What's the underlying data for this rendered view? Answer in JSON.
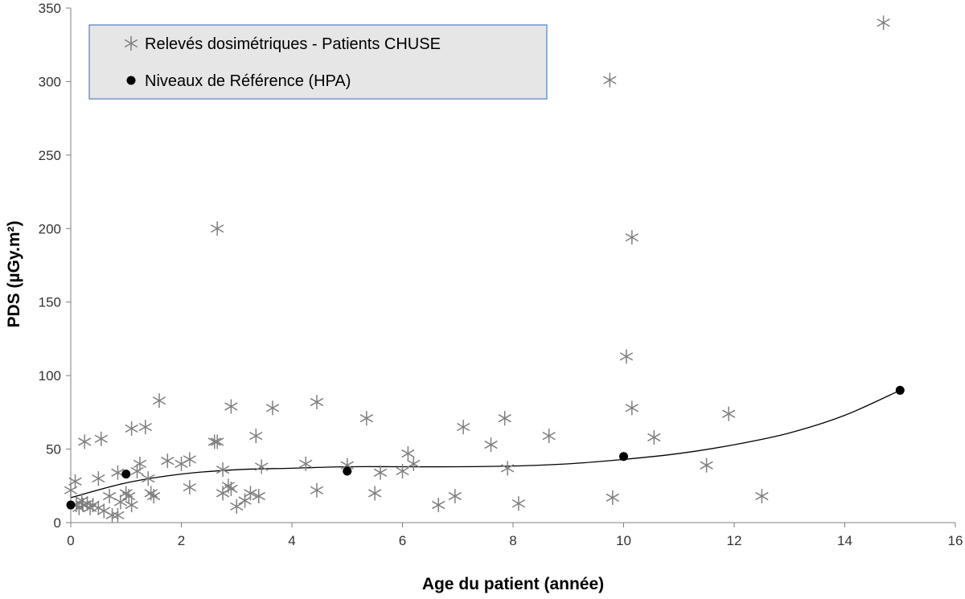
{
  "chart_data": {
    "type": "scatter",
    "xlabel": "Age du patient (année)",
    "ylabel": "PDS (µGy.m²)",
    "xlim": [
      0,
      16
    ],
    "ylim": [
      0,
      350
    ],
    "xticks": [
      "0",
      "2",
      "4",
      "6",
      "8",
      "10",
      "12",
      "14",
      "16"
    ],
    "yticks": [
      "0",
      "50",
      "100",
      "150",
      "200",
      "250",
      "300",
      "350"
    ],
    "grid": false,
    "legend_position": "top-left",
    "series": [
      {
        "name": "Relevés dosimétriques - Patients CHUSE",
        "marker": "asterisk",
        "color": "#7f7f7f",
        "points": [
          [
            0.0,
            22
          ],
          [
            0.08,
            28
          ],
          [
            0.1,
            12
          ],
          [
            0.15,
            10
          ],
          [
            0.2,
            15
          ],
          [
            0.22,
            12
          ],
          [
            0.25,
            55
          ],
          [
            0.3,
            13
          ],
          [
            0.35,
            10
          ],
          [
            0.4,
            12
          ],
          [
            0.5,
            30
          ],
          [
            0.5,
            10
          ],
          [
            0.55,
            57
          ],
          [
            0.6,
            8
          ],
          [
            0.7,
            18
          ],
          [
            0.75,
            5
          ],
          [
            0.85,
            34
          ],
          [
            0.85,
            5
          ],
          [
            0.9,
            14
          ],
          [
            1.0,
            20
          ],
          [
            1.05,
            18
          ],
          [
            1.1,
            64
          ],
          [
            1.1,
            12
          ],
          [
            1.2,
            35
          ],
          [
            1.25,
            40
          ],
          [
            1.35,
            65
          ],
          [
            1.4,
            30
          ],
          [
            1.45,
            20
          ],
          [
            1.5,
            18
          ],
          [
            1.6,
            83
          ],
          [
            1.75,
            42
          ],
          [
            2.0,
            40
          ],
          [
            2.15,
            24
          ],
          [
            2.15,
            43
          ],
          [
            2.6,
            55
          ],
          [
            2.65,
            55
          ],
          [
            2.65,
            200
          ],
          [
            2.75,
            36
          ],
          [
            2.75,
            20
          ],
          [
            2.85,
            25
          ],
          [
            2.9,
            23
          ],
          [
            2.9,
            79
          ],
          [
            3.0,
            11
          ],
          [
            3.15,
            15
          ],
          [
            3.25,
            20
          ],
          [
            3.35,
            59
          ],
          [
            3.4,
            18
          ],
          [
            3.45,
            38
          ],
          [
            3.65,
            78
          ],
          [
            4.25,
            40
          ],
          [
            4.45,
            22
          ],
          [
            4.45,
            82
          ],
          [
            5.0,
            39
          ],
          [
            5.35,
            71
          ],
          [
            5.5,
            20
          ],
          [
            5.6,
            34
          ],
          [
            6.0,
            35
          ],
          [
            6.1,
            47
          ],
          [
            6.2,
            40
          ],
          [
            6.65,
            12
          ],
          [
            6.95,
            18
          ],
          [
            7.1,
            65
          ],
          [
            7.6,
            53
          ],
          [
            7.85,
            71
          ],
          [
            7.9,
            37
          ],
          [
            8.1,
            13
          ],
          [
            8.65,
            59
          ],
          [
            9.75,
            301
          ],
          [
            9.8,
            17
          ],
          [
            10.05,
            113
          ],
          [
            10.15,
            78
          ],
          [
            10.15,
            194
          ],
          [
            10.55,
            58
          ],
          [
            11.5,
            39
          ],
          [
            11.9,
            74
          ],
          [
            12.5,
            18
          ],
          [
            14.7,
            340
          ]
        ]
      },
      {
        "name": "Niveaux de Référence (HPA)",
        "marker": "circle",
        "color": "#000000",
        "points": [
          [
            0,
            12
          ],
          [
            1,
            33
          ],
          [
            5,
            35
          ],
          [
            10,
            45
          ],
          [
            15,
            90
          ]
        ]
      }
    ],
    "trendline": {
      "based_on": "Niveaux de Référence (HPA)",
      "color": "#000000",
      "points": [
        [
          0,
          17
        ],
        [
          1,
          27
        ],
        [
          2,
          33
        ],
        [
          3,
          36
        ],
        [
          4,
          37
        ],
        [
          5,
          38
        ],
        [
          6,
          38
        ],
        [
          7,
          38
        ],
        [
          8,
          38.5
        ],
        [
          9,
          40
        ],
        [
          10,
          43
        ],
        [
          11,
          47
        ],
        [
          12,
          53
        ],
        [
          13,
          61
        ],
        [
          14,
          73
        ],
        [
          15,
          90
        ]
      ]
    }
  }
}
